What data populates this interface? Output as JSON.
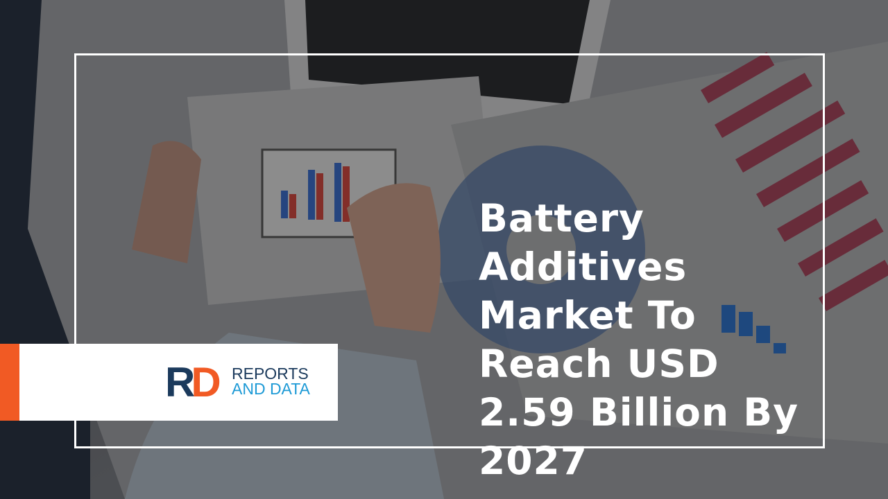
{
  "headline": "Battery Additives Market To Reach USD 2.59 Billion By 2027",
  "logo": {
    "mark_left": "R",
    "mark_right": "D",
    "line1": "REPORTS",
    "line2": "AND DATA"
  }
}
